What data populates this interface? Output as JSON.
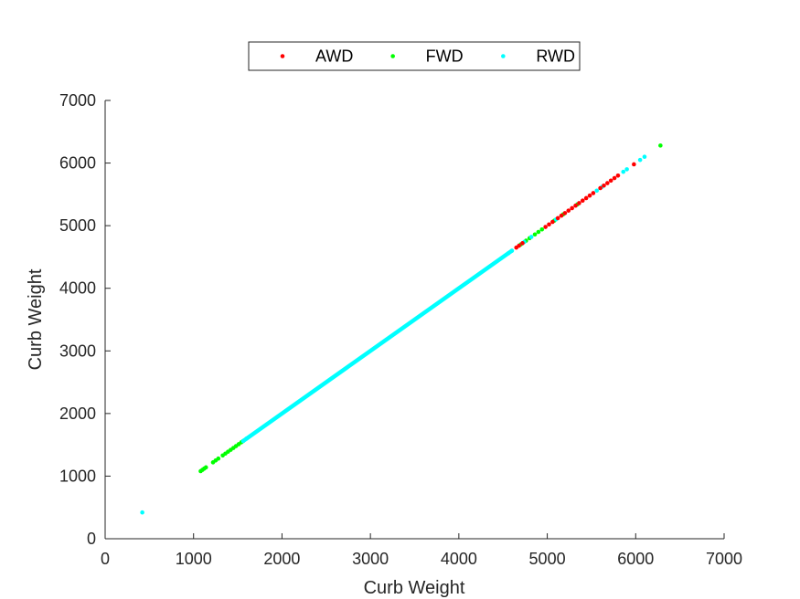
{
  "chart_data": {
    "type": "scatter",
    "xlabel": "Curb Weight",
    "ylabel": "Curb Weight",
    "xlim": [
      0,
      7000
    ],
    "ylim": [
      0,
      7000
    ],
    "xticks": [
      "0",
      "1000",
      "2000",
      "3000",
      "4000",
      "5000",
      "6000",
      "7000"
    ],
    "yticks": [
      "0",
      "1000",
      "2000",
      "3000",
      "4000",
      "5000",
      "6000",
      "7000"
    ],
    "grid": false,
    "legend_position": "top-center",
    "series": [
      {
        "name": "AWD",
        "color": "#ff0000",
        "points": [
          [
            4650,
            4650
          ],
          [
            4680,
            4680
          ],
          [
            4720,
            4720
          ],
          [
            4980,
            4980
          ],
          [
            5020,
            5020
          ],
          [
            5060,
            5060
          ],
          [
            5120,
            5120
          ],
          [
            5160,
            5160
          ],
          [
            5200,
            5200
          ],
          [
            5240,
            5240
          ],
          [
            5280,
            5280
          ],
          [
            5320,
            5320
          ],
          [
            5360,
            5360
          ],
          [
            5400,
            5400
          ],
          [
            5440,
            5440
          ],
          [
            5480,
            5480
          ],
          [
            5520,
            5520
          ],
          [
            5600,
            5600
          ],
          [
            5640,
            5640
          ],
          [
            5680,
            5680
          ],
          [
            5720,
            5720
          ],
          [
            5760,
            5760
          ],
          [
            5800,
            5800
          ],
          [
            5980,
            5980
          ]
        ]
      },
      {
        "name": "FWD",
        "color": "#00ff00",
        "points": [
          [
            1080,
            1080
          ],
          [
            1100,
            1100
          ],
          [
            1120,
            1120
          ],
          [
            1140,
            1140
          ],
          [
            1220,
            1220
          ],
          [
            1250,
            1250
          ],
          [
            1280,
            1280
          ],
          [
            1330,
            1330
          ],
          [
            1360,
            1360
          ],
          [
            1390,
            1390
          ],
          [
            1420,
            1420
          ],
          [
            1450,
            1450
          ],
          [
            1480,
            1480
          ],
          [
            1510,
            1510
          ],
          [
            1540,
            1540
          ],
          [
            1560,
            1560
          ],
          [
            4700,
            4700
          ],
          [
            4760,
            4760
          ],
          [
            4800,
            4800
          ],
          [
            4860,
            4860
          ],
          [
            4900,
            4900
          ],
          [
            4940,
            4940
          ],
          [
            5080,
            5080
          ],
          [
            5180,
            5180
          ],
          [
            5340,
            5340
          ],
          [
            6280,
            6280
          ]
        ]
      },
      {
        "name": "RWD",
        "color": "#00ffff",
        "points": [
          [
            420,
            420
          ],
          [
            1600,
            1600
          ],
          [
            4560,
            4560
          ],
          [
            4600,
            4600
          ],
          [
            4740,
            4740
          ],
          [
            4820,
            4820
          ],
          [
            5100,
            5100
          ],
          [
            5560,
            5560
          ],
          [
            5620,
            5620
          ],
          [
            5860,
            5860
          ],
          [
            5900,
            5900
          ],
          [
            6050,
            6050
          ],
          [
            6100,
            6100
          ]
        ],
        "continuous_segment": [
          1560,
          4600
        ]
      }
    ]
  }
}
